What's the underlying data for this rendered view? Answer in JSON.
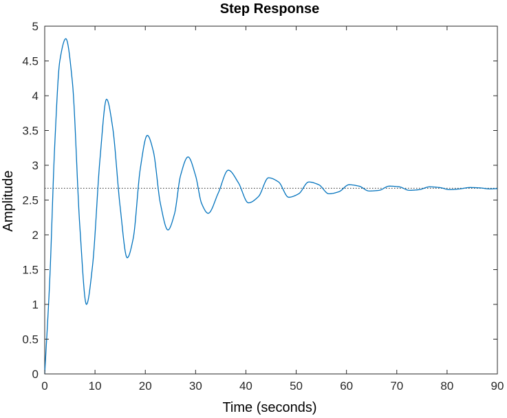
{
  "chart_data": {
    "type": "line",
    "title": "Step Response",
    "xlabel": "Time (seconds)",
    "ylabel": "Amplitude",
    "xlim": [
      0,
      90
    ],
    "ylim": [
      0,
      5
    ],
    "xticks": [
      0,
      10,
      20,
      30,
      40,
      50,
      60,
      70,
      80,
      90
    ],
    "yticks": [
      0,
      0.5,
      1,
      1.5,
      2,
      2.5,
      3,
      3.5,
      4,
      4.5,
      5
    ],
    "grid": false,
    "steady_state": 2.67,
    "series": [
      {
        "name": "",
        "color": "#0072BD",
        "x": [
          0,
          1,
          2,
          3,
          4.2,
          5.5,
          7,
          8.3,
          9.5,
          11,
          12.3,
          13.5,
          15,
          16.4,
          17.6,
          19,
          20.4,
          21.6,
          23,
          24.5,
          25.8,
          27,
          28.5,
          30,
          31.2,
          32.5,
          34.5,
          36.5,
          38.5,
          40.5,
          42.5,
          44.5,
          46.5,
          48.5,
          50.5,
          52.5,
          54.5,
          56.5,
          58.5,
          60.5,
          62.5,
          64.5,
          66.5,
          68.5,
          70.5,
          72.5,
          74.5,
          76.5,
          78.5,
          80.5,
          82.5,
          84.5,
          86.5,
          88.5,
          90
        ],
        "y": [
          0,
          1.35,
          3.3,
          4.5,
          4.82,
          4.2,
          2.1,
          1.0,
          1.55,
          3.1,
          3.95,
          3.55,
          2.4,
          1.67,
          1.95,
          2.95,
          3.43,
          3.2,
          2.45,
          2.07,
          2.3,
          2.85,
          3.12,
          2.85,
          2.45,
          2.31,
          2.6,
          2.93,
          2.75,
          2.46,
          2.55,
          2.82,
          2.76,
          2.54,
          2.59,
          2.76,
          2.72,
          2.59,
          2.62,
          2.72,
          2.7,
          2.63,
          2.64,
          2.7,
          2.69,
          2.64,
          2.65,
          2.69,
          2.68,
          2.65,
          2.66,
          2.68,
          2.675,
          2.66,
          2.665
        ]
      }
    ]
  }
}
